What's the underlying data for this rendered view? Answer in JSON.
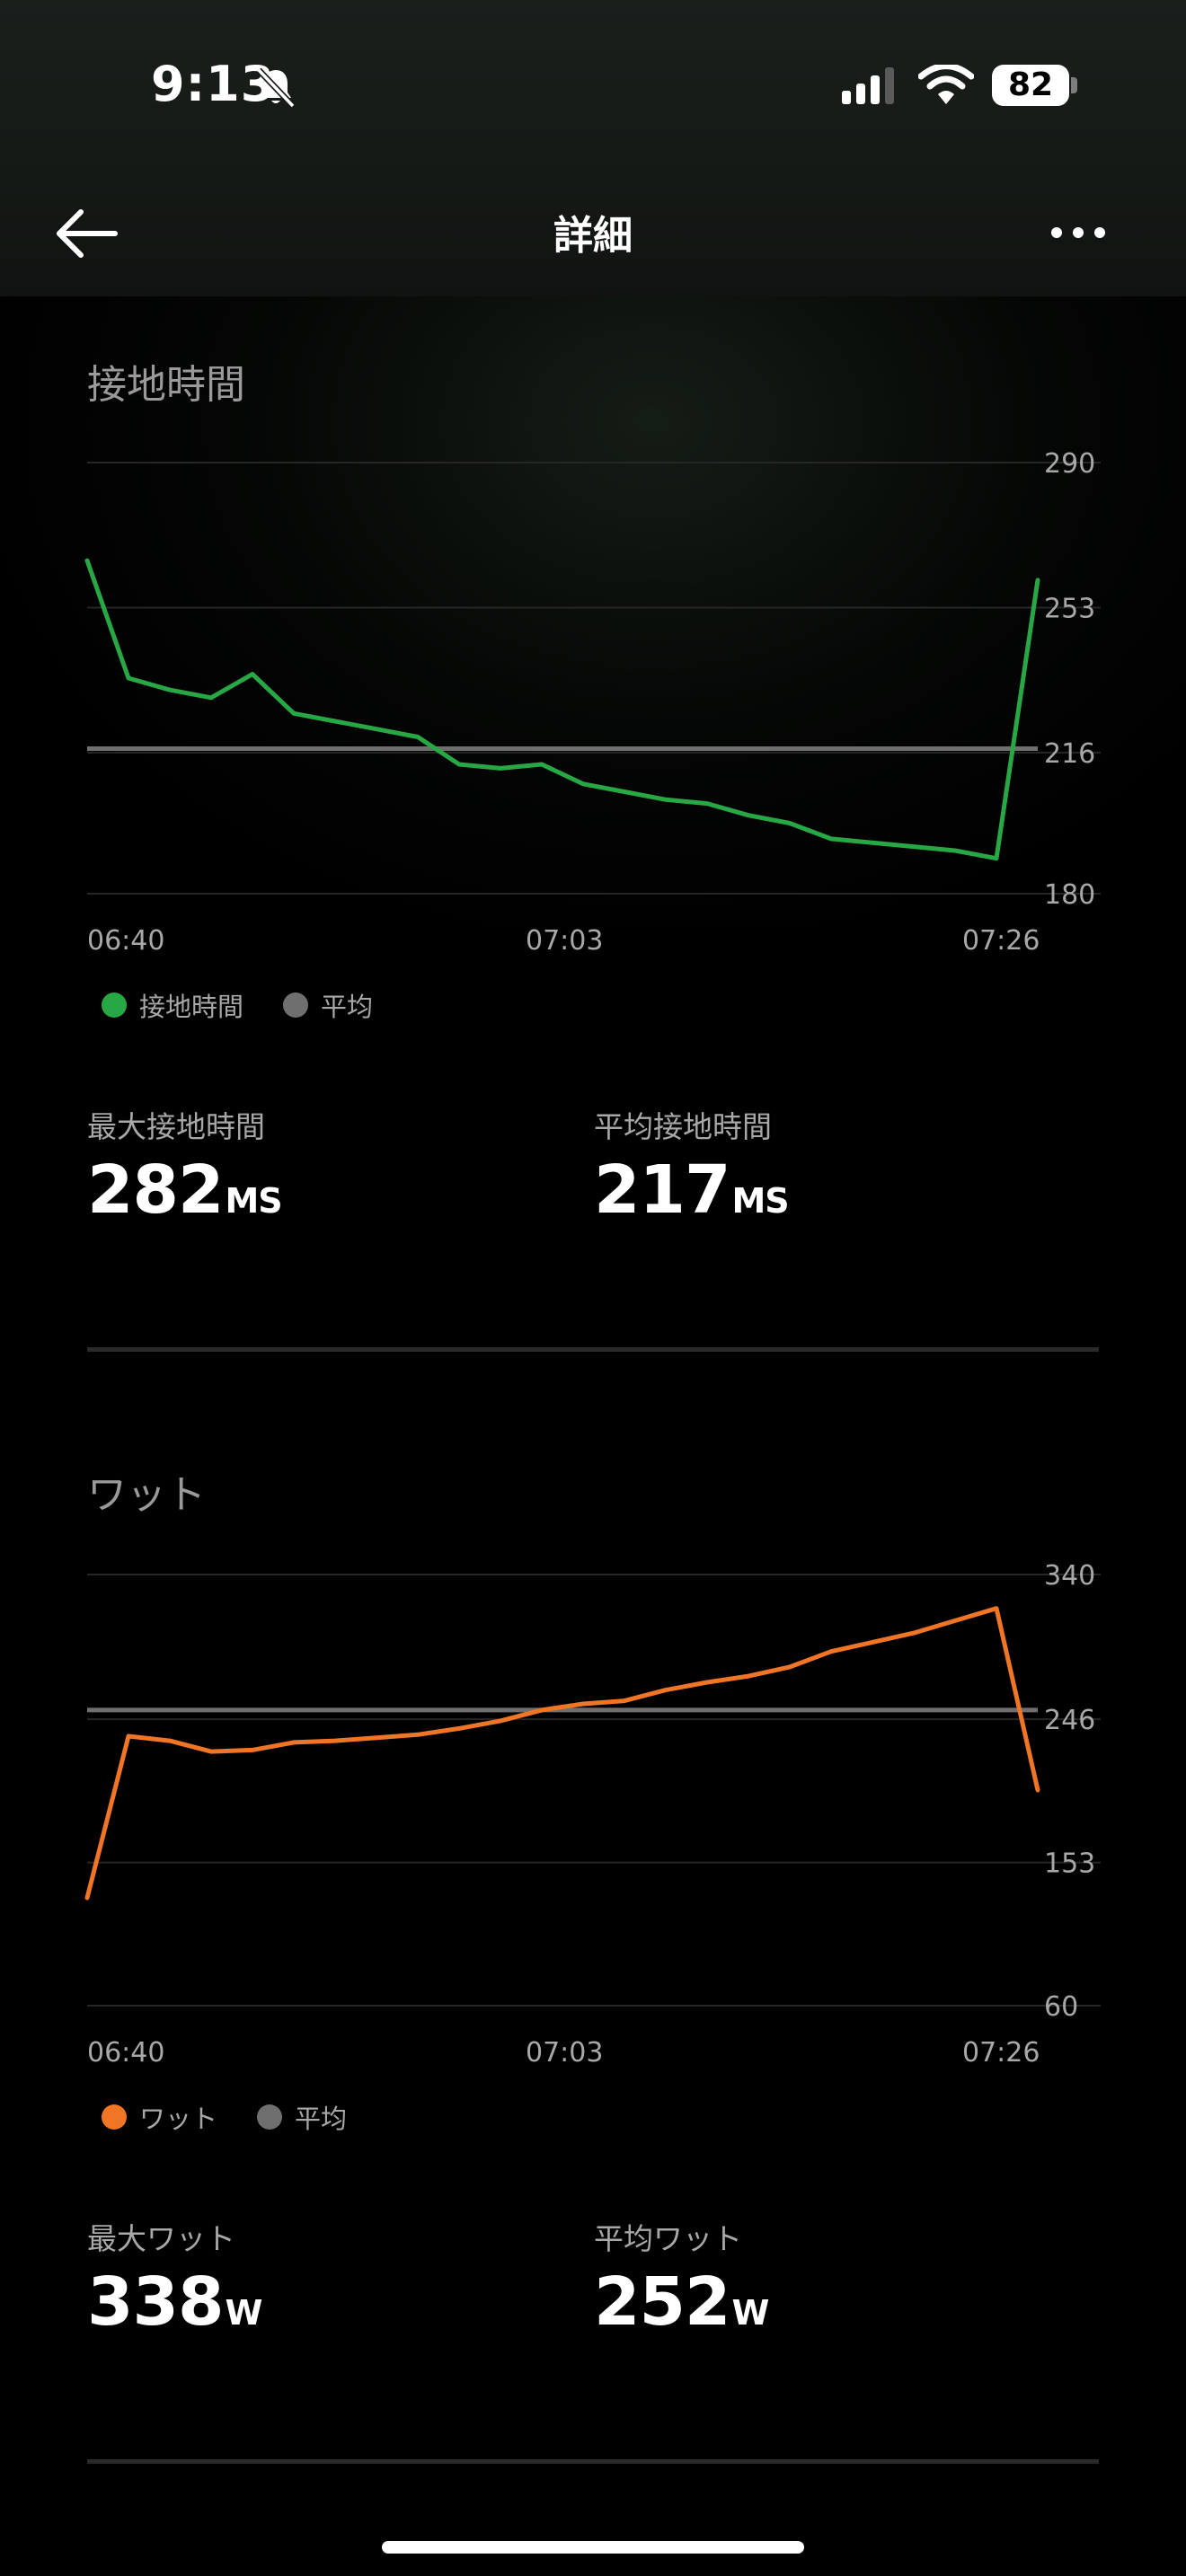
{
  "status_bar": {
    "time": "9:13",
    "battery": "82"
  },
  "nav": {
    "title": "詳細"
  },
  "colors": {
    "ground_contact": "#28a745",
    "power": "#f07525",
    "average": "#6f6f6f"
  },
  "sections": [
    {
      "title": "接地時間",
      "legend": {
        "series": "接地時間",
        "average": "平均"
      },
      "stats": [
        {
          "label": "最大接地時間",
          "value": "282",
          "unit": "MS"
        },
        {
          "label": "平均接地時間",
          "value": "217",
          "unit": "MS"
        }
      ]
    },
    {
      "title": "ワット",
      "legend": {
        "series": "ワット",
        "average": "平均"
      },
      "stats": [
        {
          "label": "最大ワット",
          "value": "338",
          "unit": "W"
        },
        {
          "label": "平均ワット",
          "value": "252",
          "unit": "W"
        }
      ]
    }
  ],
  "chart_data": [
    {
      "type": "line",
      "x": [
        "06:40",
        "06:43",
        "06:45",
        "06:47",
        "06:49",
        "06:51",
        "06:53",
        "06:55",
        "06:57",
        "06:59",
        "07:01",
        "07:03",
        "07:05",
        "07:07",
        "07:09",
        "07:11",
        "07:13",
        "07:15",
        "07:17",
        "07:19",
        "07:21",
        "07:23",
        "07:25",
        "07:26"
      ],
      "xticks": [
        "06:40",
        "07:03",
        "07:26"
      ],
      "yticks": [
        "290",
        "253",
        "216",
        "180"
      ],
      "ylim": [
        180,
        290
      ],
      "series": [
        {
          "name": "接地時間",
          "values": [
            265,
            235,
            232,
            230,
            236,
            226,
            224,
            222,
            220,
            213,
            212,
            213,
            208,
            206,
            204,
            203,
            200,
            198,
            194,
            193,
            192,
            191,
            189,
            260
          ]
        },
        {
          "name": "平均",
          "values": [
            217,
            217,
            217,
            217,
            217,
            217,
            217,
            217,
            217,
            217,
            217,
            217,
            217,
            217,
            217,
            217,
            217,
            217,
            217,
            217,
            217,
            217,
            217,
            217
          ]
        }
      ]
    },
    {
      "type": "line",
      "x": [
        "06:40",
        "06:43",
        "06:45",
        "06:47",
        "06:49",
        "06:51",
        "06:53",
        "06:55",
        "06:57",
        "06:59",
        "07:01",
        "07:03",
        "07:05",
        "07:07",
        "07:09",
        "07:11",
        "07:13",
        "07:15",
        "07:17",
        "07:19",
        "07:21",
        "07:23",
        "07:25",
        "07:26"
      ],
      "xticks": [
        "06:40",
        "07:03",
        "07:26"
      ],
      "yticks": [
        "340",
        "246",
        "153",
        "60"
      ],
      "ylim": [
        60,
        340
      ],
      "series": [
        {
          "name": "ワット",
          "values": [
            130,
            235,
            232,
            225,
            226,
            231,
            232,
            234,
            236,
            240,
            245,
            252,
            256,
            258,
            265,
            270,
            274,
            280,
            290,
            296,
            302,
            310,
            318,
            200
          ]
        },
        {
          "name": "平均",
          "values": [
            252,
            252,
            252,
            252,
            252,
            252,
            252,
            252,
            252,
            252,
            252,
            252,
            252,
            252,
            252,
            252,
            252,
            252,
            252,
            252,
            252,
            252,
            252,
            252
          ]
        }
      ]
    }
  ]
}
